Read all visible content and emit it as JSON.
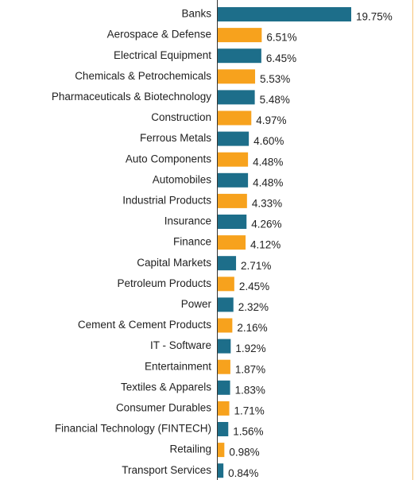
{
  "chart_data": {
    "type": "barh",
    "categories": [
      "Banks",
      "Aerospace & Defense",
      "Electrical Equipment",
      "Chemicals & Petrochemicals",
      "Pharmaceuticals & Biotechnology",
      "Construction",
      "Ferrous Metals",
      "Auto Components",
      "Automobiles",
      "Industrial Products",
      "Insurance",
      "Finance",
      "Capital Markets",
      "Petroleum Products",
      "Power",
      "Cement & Cement Products",
      "IT - Software",
      "Entertainment",
      "Textiles & Apparels",
      "Consumer Durables",
      "Financial Technology (FINTECH)",
      "Retailing",
      "Transport Services"
    ],
    "values": [
      19.75,
      6.51,
      6.45,
      5.53,
      5.48,
      4.97,
      4.6,
      4.48,
      4.48,
      4.33,
      4.26,
      4.12,
      2.71,
      2.45,
      2.32,
      2.16,
      1.92,
      1.87,
      1.83,
      1.71,
      1.56,
      0.98,
      0.84
    ],
    "value_labels": [
      "19.75%",
      "6.51%",
      "6.45%",
      "5.53%",
      "5.48%",
      "4.97%",
      "4.60%",
      "4.48%",
      "4.48%",
      "4.33%",
      "4.26%",
      "4.12%",
      "2.71%",
      "2.45%",
      "2.32%",
      "2.16%",
      "1.92%",
      "1.87%",
      "1.83%",
      "1.71%",
      "1.56%",
      "0.98%",
      "0.84%"
    ],
    "colors": [
      "#1d6e8a",
      "#f7a21d"
    ]
  }
}
